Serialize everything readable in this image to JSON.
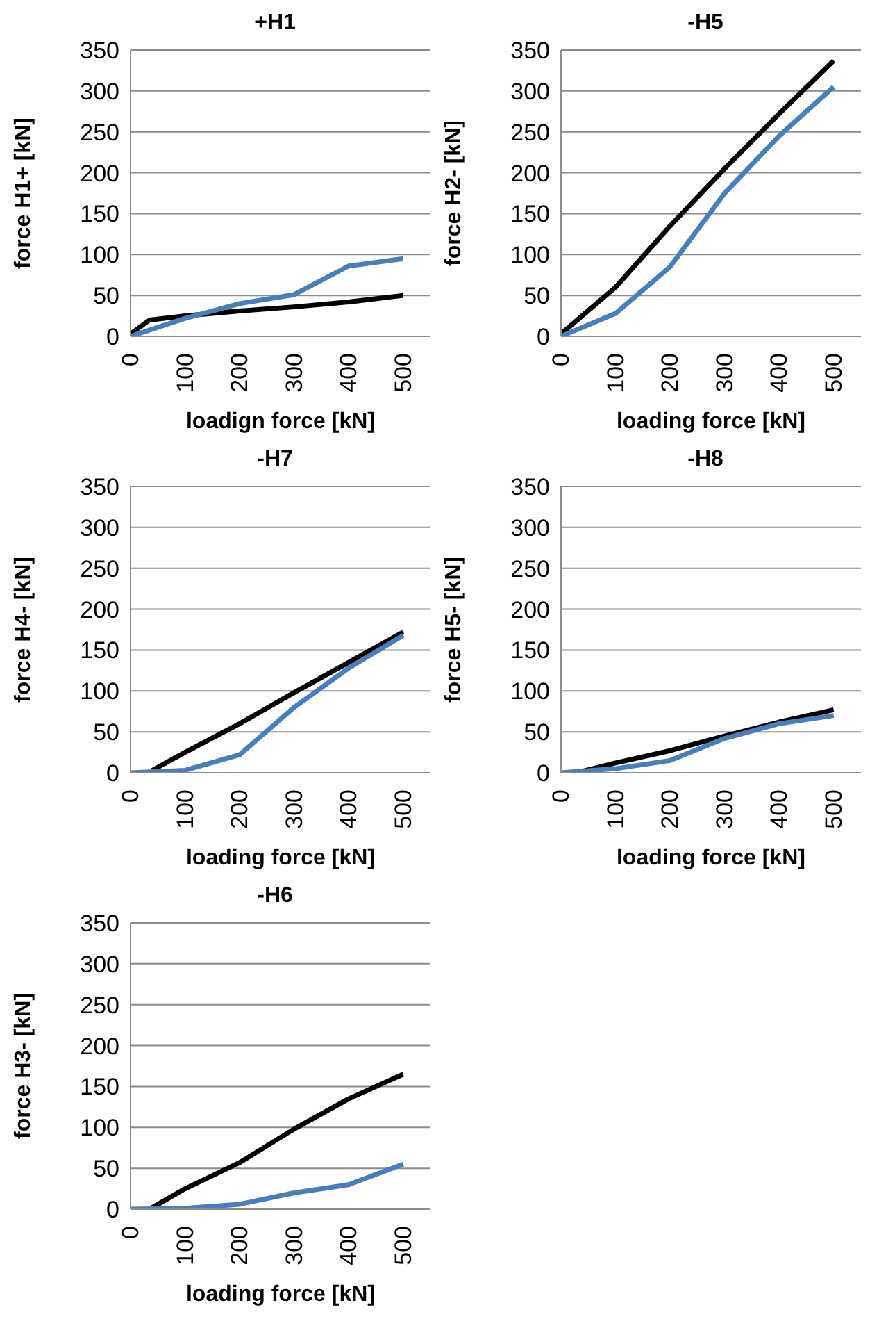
{
  "chart_data": [
    {
      "type": "line",
      "title": "+H1",
      "xlabel": "loadign force [kN]",
      "ylabel": "force H1+ [kN]",
      "xlim": [
        0,
        550
      ],
      "xticks": [
        0,
        100,
        200,
        300,
        400,
        500
      ],
      "ylim": [
        0,
        350
      ],
      "yticks": [
        0,
        50,
        100,
        150,
        200,
        250,
        300,
        350
      ],
      "grid": "y",
      "line_style": "solid",
      "series": [
        {
          "color": "#000000",
          "x": [
            0,
            35,
            100,
            200,
            300,
            400,
            500
          ],
          "values": [
            3,
            20,
            25,
            31,
            36,
            42,
            50
          ]
        },
        {
          "color": "#4a7ebb",
          "x": [
            0,
            100,
            200,
            300,
            400,
            500
          ],
          "values": [
            0,
            22,
            40,
            51,
            86,
            95
          ]
        }
      ]
    },
    {
      "type": "line",
      "title": "-H5",
      "xlabel": "loading force [kN]",
      "ylabel": "force H2- [kN]",
      "xlim": [
        0,
        550
      ],
      "xticks": [
        0,
        100,
        200,
        300,
        400,
        500
      ],
      "ylim": [
        0,
        350
      ],
      "yticks": [
        0,
        50,
        100,
        150,
        200,
        250,
        300,
        350
      ],
      "grid": "y",
      "line_style": "solid",
      "series": [
        {
          "color": "#000000",
          "x": [
            0,
            100,
            200,
            300,
            400,
            500
          ],
          "values": [
            3,
            60,
            135,
            205,
            272,
            337
          ]
        },
        {
          "color": "#4a7ebb",
          "x": [
            0,
            100,
            200,
            300,
            400,
            500
          ],
          "values": [
            0,
            28,
            85,
            175,
            245,
            305
          ]
        }
      ]
    },
    {
      "type": "line",
      "title": "-H7",
      "xlabel": "loading force [kN]",
      "ylabel": "force H4- [kN]",
      "xlim": [
        0,
        550
      ],
      "xticks": [
        0,
        100,
        200,
        300,
        400,
        500
      ],
      "ylim": [
        0,
        350
      ],
      "yticks": [
        0,
        50,
        100,
        150,
        200,
        250,
        300,
        350
      ],
      "grid": "y",
      "line_style": "solid",
      "series": [
        {
          "color": "#000000",
          "x": [
            40,
            100,
            200,
            300,
            400,
            500
          ],
          "values": [
            3,
            25,
            60,
            98,
            135,
            172
          ]
        },
        {
          "color": "#4a7ebb",
          "x": [
            0,
            100,
            200,
            300,
            400,
            500
          ],
          "values": [
            0,
            3,
            22,
            80,
            128,
            168
          ]
        }
      ]
    },
    {
      "type": "line",
      "title": "-H8",
      "xlabel": "loading force [kN]",
      "ylabel": "force H5- [kN]",
      "xlim": [
        0,
        550
      ],
      "xticks": [
        0,
        100,
        200,
        300,
        400,
        500
      ],
      "ylim": [
        0,
        350
      ],
      "yticks": [
        0,
        50,
        100,
        150,
        200,
        250,
        300,
        350
      ],
      "grid": "y",
      "line_style": "solid",
      "series": [
        {
          "color": "#000000",
          "x": [
            40,
            100,
            200,
            300,
            400,
            500
          ],
          "values": [
            2,
            12,
            27,
            45,
            62,
            77
          ]
        },
        {
          "color": "#4a7ebb",
          "x": [
            0,
            100,
            200,
            300,
            400,
            500
          ],
          "values": [
            0,
            5,
            15,
            42,
            60,
            70
          ]
        }
      ]
    },
    {
      "type": "line",
      "title": "-H6",
      "xlabel": "loading force [kN]",
      "ylabel": "force H3- [kN]",
      "xlim": [
        0,
        550
      ],
      "xticks": [
        0,
        100,
        200,
        300,
        400,
        500
      ],
      "ylim": [
        0,
        350
      ],
      "yticks": [
        0,
        50,
        100,
        150,
        200,
        250,
        300,
        350
      ],
      "grid": "y",
      "line_style": "solid",
      "series": [
        {
          "color": "#000000",
          "x": [
            40,
            100,
            200,
            300,
            400,
            500
          ],
          "values": [
            2,
            25,
            57,
            98,
            135,
            165
          ]
        },
        {
          "color": "#4a7ebb",
          "x": [
            0,
            100,
            200,
            300,
            400,
            500
          ],
          "values": [
            0,
            1,
            6,
            20,
            30,
            55
          ]
        }
      ]
    }
  ]
}
